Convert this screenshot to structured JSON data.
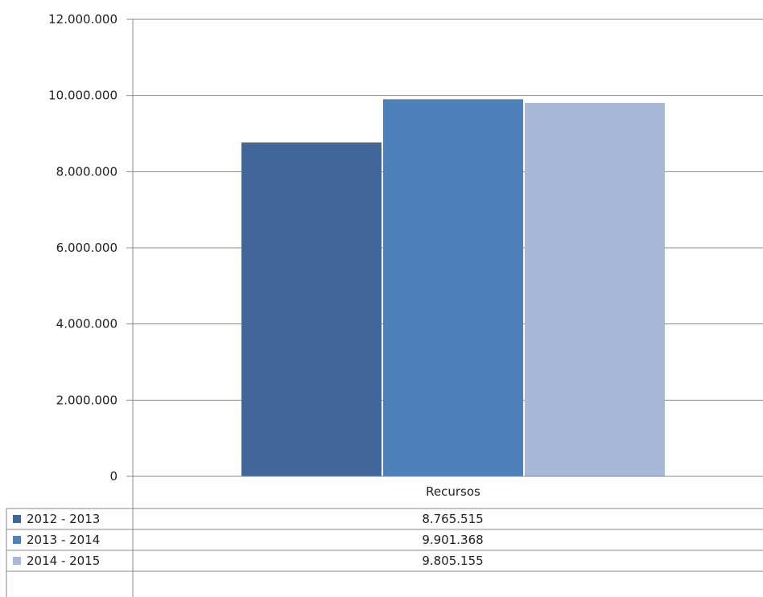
{
  "chart_data": {
    "type": "bar",
    "categories": [
      "Recursos"
    ],
    "series": [
      {
        "name": "2012 - 2013",
        "values": [
          8765515
        ],
        "value_label": "8.765.515",
        "color": "#41679a"
      },
      {
        "name": "2013 - 2014",
        "values": [
          9901368
        ],
        "value_label": "9.901.368",
        "color": "#4e80bc"
      },
      {
        "name": "2014 - 2015",
        "values": [
          9805155
        ],
        "value_label": "9.805.155",
        "color": "#a8b9d8"
      }
    ],
    "ylim": [
      0,
      12000000
    ],
    "yticks": [
      0,
      2000000,
      4000000,
      6000000,
      8000000,
      10000000,
      12000000
    ],
    "ytick_labels": [
      "0",
      "2.000.000",
      "4.000.000",
      "6.000.000",
      "8.000.000",
      "10.000.000",
      "12.000.000"
    ],
    "grid": true,
    "legend": "data-table-below",
    "title": "",
    "xlabel": "",
    "ylabel": ""
  }
}
